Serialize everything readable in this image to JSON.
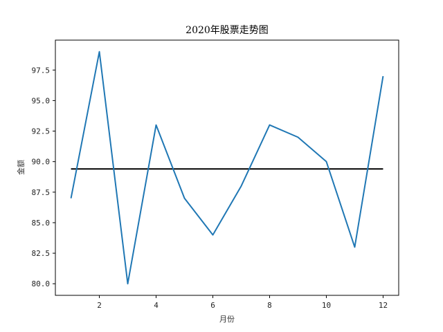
{
  "chart_data": {
    "type": "line",
    "title": "2020年股票走势图",
    "xlabel": "月份",
    "ylabel": "金额",
    "x": [
      1,
      2,
      3,
      4,
      5,
      6,
      7,
      8,
      9,
      10,
      11,
      12
    ],
    "series": [
      {
        "values": [
          87,
          99,
          80,
          93,
          87,
          84,
          88,
          93,
          92,
          90,
          83,
          97
        ],
        "color": "#1f77b4"
      }
    ],
    "mean_line": {
      "value": 89.4,
      "x_range": [
        1,
        12
      ],
      "color": "#000000"
    },
    "xlim": [
      0.45,
      12.55
    ],
    "ylim": [
      79.05,
      99.95
    ],
    "x_ticks": [
      2,
      4,
      6,
      8,
      10,
      12
    ],
    "y_ticks": [
      80.0,
      82.5,
      85.0,
      87.5,
      90.0,
      92.5,
      95.0,
      97.5
    ],
    "x_tick_labels": [
      "2",
      "4",
      "6",
      "8",
      "10",
      "12"
    ],
    "y_tick_labels": [
      "80.0",
      "82.5",
      "85.0",
      "87.5",
      "90.0",
      "92.5",
      "95.0",
      "97.5"
    ],
    "grid": false,
    "legend": "none"
  }
}
